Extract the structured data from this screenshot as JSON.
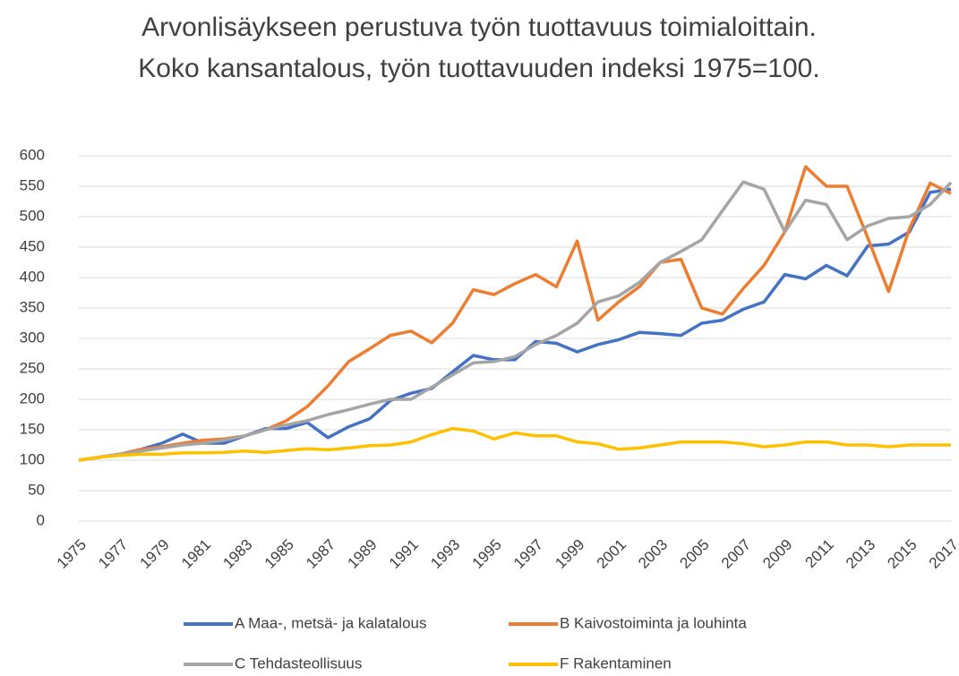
{
  "chart_data": {
    "type": "line",
    "title": "Arvonlisäykseen perustuva työn tuottavuus toimialoittain. Koko kansantalous, työn tuottavuuden indeksi 1975=100.",
    "x": [
      1975,
      1976,
      1977,
      1978,
      1979,
      1980,
      1981,
      1982,
      1983,
      1984,
      1985,
      1986,
      1987,
      1988,
      1989,
      1990,
      1991,
      1992,
      1993,
      1994,
      1995,
      1996,
      1997,
      1998,
      1999,
      2000,
      2001,
      2002,
      2003,
      2004,
      2005,
      2006,
      2007,
      2008,
      2009,
      2010,
      2011,
      2012,
      2013,
      2014,
      2015,
      2016,
      2017
    ],
    "xlim": [
      1975,
      2017
    ],
    "xticks": [
      1975,
      1977,
      1979,
      1981,
      1983,
      1985,
      1987,
      1989,
      1991,
      1993,
      1995,
      1997,
      1999,
      2001,
      2003,
      2005,
      2007,
      2009,
      2011,
      2013,
      2015,
      2017
    ],
    "ylim": [
      0,
      600
    ],
    "yticks": [
      0,
      50,
      100,
      150,
      200,
      250,
      300,
      350,
      400,
      450,
      500,
      550,
      600
    ],
    "grid": true,
    "legend": "bottom",
    "series": [
      {
        "name": "A Maa-, metsä- ja kalatalous",
        "color": "#4472c4",
        "values": [
          100,
          105,
          110,
          118,
          128,
          143,
          128,
          128,
          140,
          152,
          152,
          162,
          137,
          155,
          168,
          198,
          210,
          218,
          245,
          272,
          265,
          265,
          295,
          292,
          278,
          290,
          298,
          310,
          308,
          305,
          325,
          330,
          348,
          360,
          405,
          398,
          420,
          403,
          452,
          455,
          475,
          540,
          545
        ]
      },
      {
        "name": "B Kaivostoiminta ja louhinta",
        "color": "#ed7d31",
        "values": [
          100,
          105,
          110,
          118,
          122,
          128,
          133,
          135,
          140,
          150,
          165,
          188,
          222,
          262,
          283,
          305,
          312,
          293,
          325,
          380,
          372,
          390,
          405,
          385,
          460,
          330,
          360,
          385,
          425,
          430,
          350,
          340,
          382,
          420,
          475,
          582,
          550,
          550,
          465,
          377,
          480,
          555,
          538
        ]
      },
      {
        "name": "C Tehdasteollisuus",
        "color": "#a5a5a5",
        "values": [
          100,
          105,
          110,
          115,
          120,
          125,
          128,
          133,
          140,
          150,
          158,
          165,
          175,
          183,
          192,
          200,
          200,
          220,
          240,
          260,
          262,
          270,
          290,
          305,
          325,
          360,
          370,
          392,
          425,
          443,
          462,
          510,
          557,
          545,
          475,
          527,
          520,
          462,
          485,
          497,
          500,
          520,
          556
        ]
      },
      {
        "name": "F Rakentaminen",
        "color": "#ffc000",
        "values": [
          100,
          105,
          108,
          110,
          110,
          112,
          112,
          113,
          115,
          113,
          116,
          119,
          117,
          120,
          124,
          125,
          130,
          142,
          152,
          148,
          135,
          145,
          140,
          140,
          130,
          127,
          118,
          120,
          125,
          130,
          130,
          130,
          127,
          122,
          125,
          130,
          130,
          125,
          125,
          122,
          125,
          125,
          125
        ]
      }
    ]
  }
}
